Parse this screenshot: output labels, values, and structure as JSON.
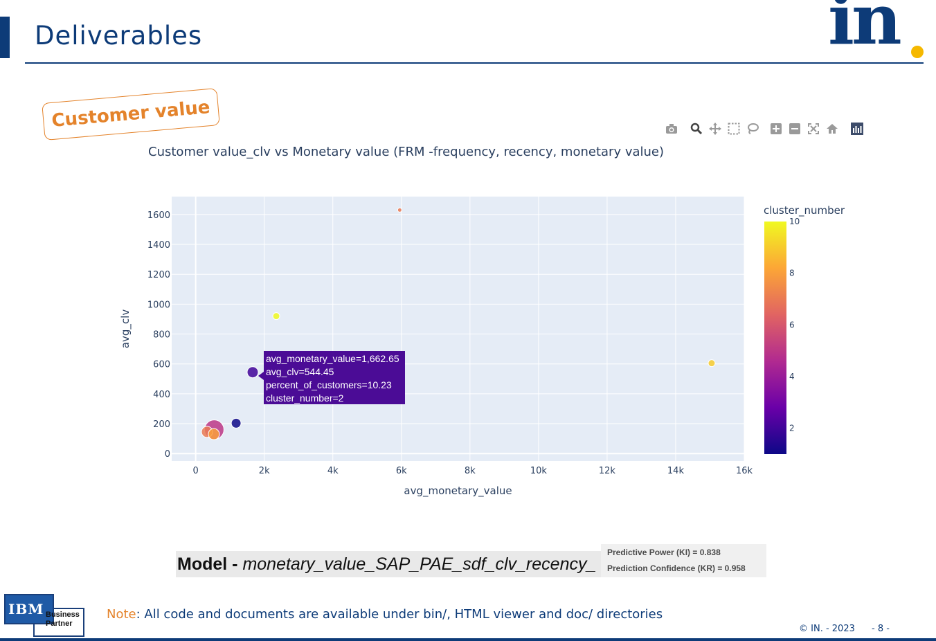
{
  "header": {
    "title": "Deliverables",
    "logo_text": "in"
  },
  "stamp": {
    "label": "Customer value"
  },
  "toolbar": {
    "icons": [
      "camera-icon",
      "zoom-icon",
      "pan-icon",
      "box-select-icon",
      "lasso-select-icon",
      "zoom-in-icon",
      "zoom-out-icon",
      "autoscale-icon",
      "reset-axes-icon",
      "plotly-logo-icon"
    ]
  },
  "chart_data": {
    "type": "scatter",
    "title": "Customer value_clv vs Monetary value (FRM -frequency, recency, monetary value)",
    "xlabel": "avg_monetary_value",
    "ylabel": "avg_clv",
    "xlim": [
      -700,
      16000
    ],
    "ylim": [
      -50,
      1720
    ],
    "x_ticks": [
      0,
      2000,
      4000,
      6000,
      8000,
      10000,
      12000,
      14000,
      16000
    ],
    "x_tick_labels": [
      "0",
      "2k",
      "4k",
      "6k",
      "8k",
      "10k",
      "12k",
      "14k",
      "16k"
    ],
    "y_ticks": [
      0,
      200,
      400,
      600,
      800,
      1000,
      1200,
      1400,
      1600
    ],
    "y_tick_labels": [
      "0",
      "200",
      "400",
      "600",
      "800",
      "1000",
      "1200",
      "1400",
      "1600"
    ],
    "colorbar": {
      "title": "cluster_number",
      "range": [
        1,
        10
      ],
      "ticks": [
        2,
        4,
        6,
        8,
        10
      ],
      "tick_labels": [
        "2",
        "4",
        "6",
        "8",
        "10"
      ],
      "colors": [
        "#0d0887",
        "#6a00a8",
        "#b12a90",
        "#e16462",
        "#fca636",
        "#f0f921"
      ]
    },
    "grid": true,
    "points": [
      {
        "x": 5950,
        "y": 1630,
        "size": 3,
        "cluster": 7
      },
      {
        "x": 2350,
        "y": 920,
        "size": 5,
        "cluster": 10
      },
      {
        "x": 15050,
        "y": 605,
        "size": 5,
        "cluster": 9
      },
      {
        "x": 1662.65,
        "y": 544.45,
        "size": 8,
        "cluster": 2
      },
      {
        "x": 3550,
        "y": 360,
        "size": 6,
        "cluster": 4
      },
      {
        "x": 1180,
        "y": 203,
        "size": 7,
        "cluster": 1
      },
      {
        "x": 540,
        "y": 160,
        "size": 14,
        "cluster": 5
      },
      {
        "x": 330,
        "y": 145,
        "size": 8,
        "cluster": 7
      },
      {
        "x": 530,
        "y": 130,
        "size": 8,
        "cluster": 8
      }
    ],
    "tooltip": {
      "lines": [
        "avg_monetary_value=1,662.65",
        "avg_clv=544.45",
        "percent_of_customers=10.23",
        "cluster_number=2"
      ]
    }
  },
  "model": {
    "prefix": "Model - ",
    "name": "monetary_value_SAP_PAE_sdf_clv_recency_",
    "predictive_power": "Predictive Power (KI) = 0.838",
    "prediction_confidence": "Prediction Confidence (KR) = 0.958"
  },
  "badge": {
    "brand": "IBM",
    "line1": "Business",
    "line2": "Partner"
  },
  "note": {
    "lead": "Note",
    "text": ": All code and documents are available under bin/, HTML viewer and doc/ directories"
  },
  "footer": {
    "copyright": "© IN. - 2023",
    "page": "- 8 -"
  }
}
